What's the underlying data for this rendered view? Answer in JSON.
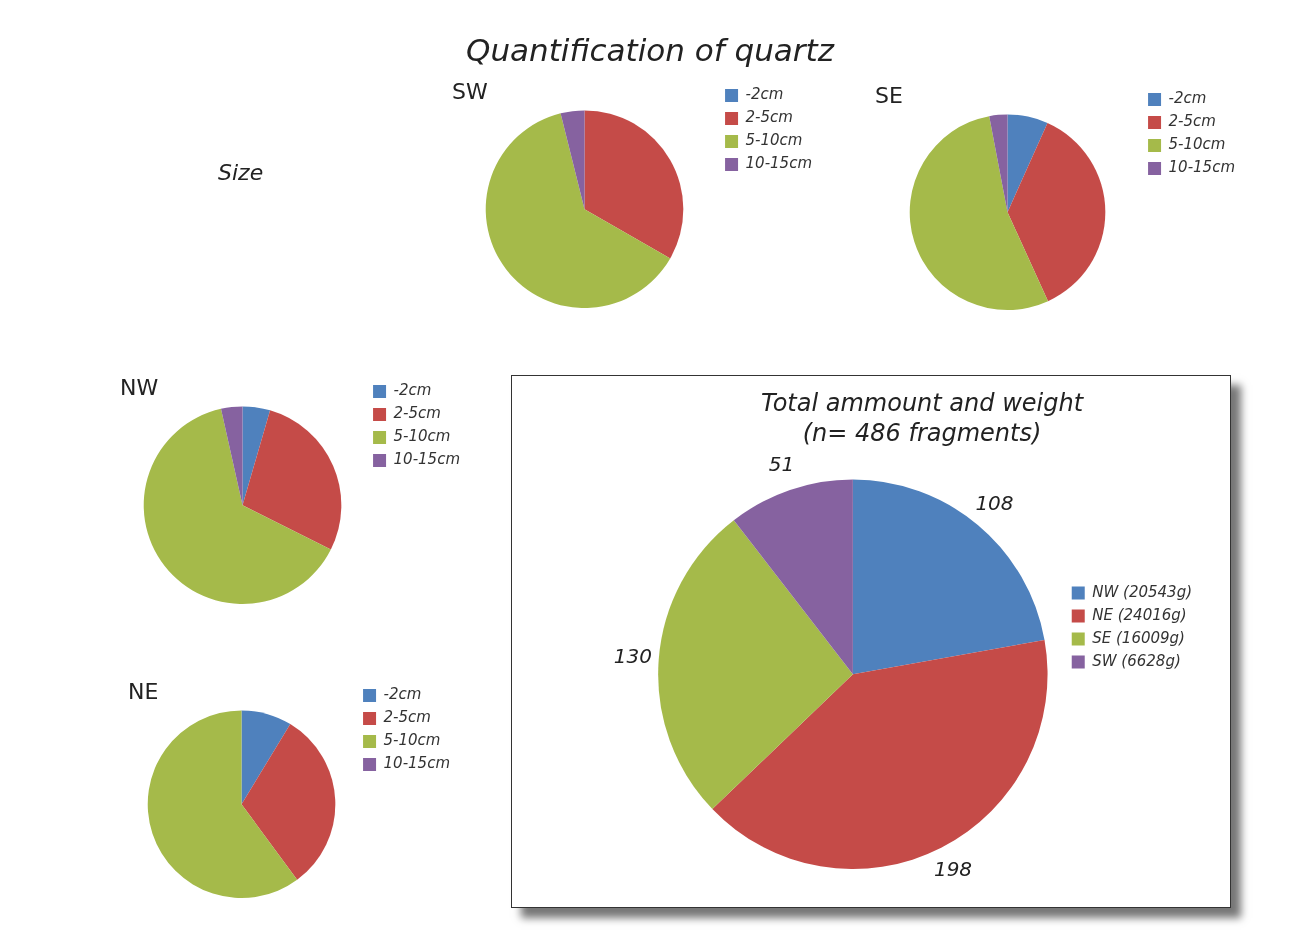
{
  "chart_data": [
    {
      "type": "other",
      "title": "Quantification of quartz",
      "annotations": [
        "Size"
      ]
    },
    {
      "type": "pie",
      "title": "SW",
      "categories": [
        "-2cm",
        "2-5cm",
        "5-10cm",
        "10-15cm"
      ],
      "values": [
        0,
        33.3,
        62.8,
        3.9
      ],
      "colors": [
        "#4f81bd",
        "#c54b48",
        "#a5ba4a",
        "#8662a0"
      ],
      "legend": "right"
    },
    {
      "type": "pie",
      "title": "SE",
      "categories": [
        "-2cm",
        "2-5cm",
        "5-10cm",
        "10-15cm"
      ],
      "values": [
        6.7,
        36.5,
        53.8,
        3.0
      ],
      "colors": [
        "#4f81bd",
        "#c54b48",
        "#a5ba4a",
        "#8662a0"
      ],
      "legend": "right"
    },
    {
      "type": "pie",
      "title": "NW",
      "categories": [
        "-2cm",
        "2-5cm",
        "5-10cm",
        "10-15cm"
      ],
      "values": [
        4.5,
        27.9,
        64.1,
        3.5
      ],
      "colors": [
        "#4f81bd",
        "#c54b48",
        "#a5ba4a",
        "#8662a0"
      ],
      "legend": "right"
    },
    {
      "type": "pie",
      "title": "NE",
      "categories": [
        "-2cm",
        "2-5cm",
        "5-10cm",
        "10-15cm"
      ],
      "values": [
        8.7,
        31.2,
        60.1,
        0
      ],
      "colors": [
        "#4f81bd",
        "#c54b48",
        "#a5ba4a",
        "#8662a0"
      ],
      "legend": "right"
    },
    {
      "type": "pie",
      "title": "Total ammount and weight",
      "subtitle": "(n= 486 fragments)",
      "categories": [
        "NW (20543g)",
        "NE (24016g)",
        "SE (16009g)",
        "SW (6628g)"
      ],
      "values": [
        108,
        198,
        130,
        51
      ],
      "colors": [
        "#4f81bd",
        "#c54b48",
        "#a5ba4a",
        "#8662a0"
      ],
      "legend": "right",
      "data_labels": true
    }
  ]
}
